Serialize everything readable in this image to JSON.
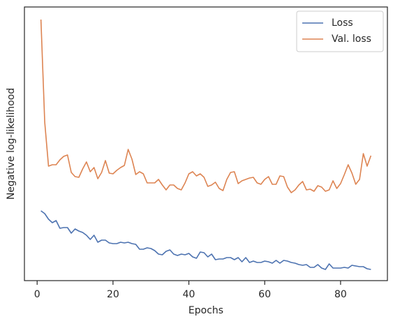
{
  "chart_data": {
    "type": "line",
    "xlabel": "Epochs",
    "ylabel": "Negative log-likelihood",
    "x": [
      1,
      2,
      3,
      4,
      5,
      6,
      7,
      8,
      9,
      10,
      11,
      12,
      13,
      14,
      15,
      16,
      17,
      18,
      19,
      20,
      21,
      22,
      23,
      24,
      25,
      26,
      27,
      28,
      29,
      30,
      31,
      32,
      33,
      34,
      35,
      36,
      37,
      38,
      39,
      40,
      41,
      42,
      43,
      44,
      45,
      46,
      47,
      48,
      49,
      50,
      51,
      52,
      53,
      54,
      55,
      56,
      57,
      58,
      59,
      60,
      61,
      62,
      63,
      64,
      65,
      66,
      67,
      68,
      69,
      70,
      71,
      72,
      73,
      74,
      75,
      76,
      77,
      78,
      79,
      80,
      81,
      82,
      83,
      84,
      85,
      86,
      87,
      88
    ],
    "series": [
      {
        "name": "Loss",
        "color": "#4c72b0",
        "values": [
          100,
          96,
          88,
          83,
          86,
          75,
          76,
          76,
          68,
          74,
          71,
          69,
          65,
          59,
          65,
          55,
          58,
          58,
          54,
          53,
          53,
          55,
          54,
          55,
          53,
          52,
          45,
          45,
          47,
          46,
          43,
          38,
          37,
          42,
          44,
          38,
          36,
          38,
          37,
          39,
          34,
          32,
          41,
          40,
          34,
          38,
          30,
          31,
          31,
          33,
          33,
          30,
          33,
          27,
          33,
          26,
          28,
          26,
          26,
          28,
          27,
          25,
          29,
          25,
          29,
          28,
          26,
          25,
          23,
          22,
          23,
          19,
          19,
          23,
          18,
          16,
          24,
          18,
          18,
          18,
          19,
          18,
          22,
          21,
          20,
          20,
          17,
          16
        ]
      },
      {
        "name": "Val. loss",
        "color": "#dd8452",
        "values": [
          374,
          227,
          164,
          166,
          166,
          173,
          178,
          180,
          155,
          149,
          148,
          160,
          170,
          156,
          162,
          146,
          155,
          172,
          154,
          153,
          158,
          162,
          165,
          188,
          174,
          152,
          156,
          153,
          140,
          140,
          140,
          145,
          137,
          130,
          137,
          137,
          132,
          130,
          140,
          153,
          156,
          150,
          153,
          148,
          135,
          137,
          141,
          132,
          129,
          145,
          155,
          156,
          139,
          143,
          145,
          147,
          148,
          140,
          138,
          145,
          149,
          138,
          138,
          150,
          149,
          134,
          126,
          130,
          137,
          142,
          130,
          131,
          128,
          136,
          134,
          128,
          130,
          143,
          132,
          139,
          152,
          166,
          154,
          138,
          145,
          182,
          164,
          179
        ]
      }
    ],
    "xlim": [
      -3.35,
      92.35
    ],
    "xticks": [
      0,
      20,
      40,
      60,
      80
    ],
    "ylim": [
      0,
      392
    ],
    "legend": "upper right"
  }
}
